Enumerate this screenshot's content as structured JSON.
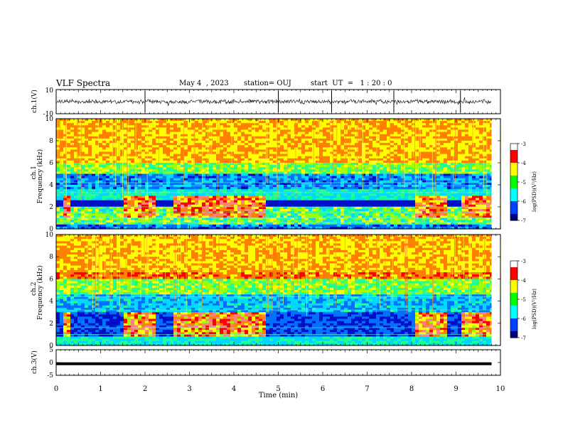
{
  "header": {
    "title": "VLF Spectra",
    "date": "May 4  , 2023",
    "station": "station= OUJ",
    "start": "start  UT  =   1 : 20 : 0"
  },
  "chart_data": [
    {
      "type": "line",
      "panel": "ch1-waveform",
      "ylabel": "ch.1(V)",
      "ylim": [
        -10,
        10
      ],
      "yticks": [
        "10",
        "-10"
      ],
      "xlim": [
        0,
        10
      ],
      "description_level": 0
    },
    {
      "type": "heatmap",
      "panel": "ch1-spectrogram",
      "ylabel": "ch.1\nFrequency (kHz)",
      "ylabel_lines": [
        "ch.1",
        "Frequency  (kHz)"
      ],
      "ylim": [
        0,
        10
      ],
      "yticks": [
        "0",
        "2",
        "4",
        "6",
        "8",
        "10"
      ],
      "xlim": [
        0,
        10
      ],
      "colorbar": {
        "label": "log(PSD)(V²/Hz)",
        "ticks": [
          "-3",
          "-4",
          "-5",
          "-6",
          "-7"
        ],
        "range": [
          -7,
          -3
        ]
      },
      "quiet_intervals_min": [
        [
          1.5,
          2.2
        ],
        [
          2.6,
          4.6
        ],
        [
          7.9,
          8.6
        ],
        [
          8.9,
          9.8
        ]
      ]
    },
    {
      "type": "heatmap",
      "panel": "ch2-spectrogram",
      "ylabel_lines": [
        "ch.2",
        "Frequency  (kHz)"
      ],
      "ylim": [
        0,
        10
      ],
      "yticks": [
        "0",
        "2",
        "4",
        "6",
        "8",
        "10"
      ],
      "xlim": [
        0,
        10
      ],
      "colorbar": {
        "label": "log(PSD)(V²/Hz)",
        "ticks": [
          "-3",
          "-4",
          "-5",
          "-6",
          "-7"
        ],
        "range": [
          -7,
          -3
        ]
      }
    },
    {
      "type": "line",
      "panel": "ch3-waveform",
      "ylabel": "ch.3(V)",
      "ylim": [
        -5,
        5
      ],
      "yticks": [
        "5",
        "0",
        "-5"
      ],
      "series": [
        {
          "values": [
            -0.5,
            -0.5
          ]
        }
      ],
      "x": [
        0,
        9.8
      ]
    }
  ],
  "xaxis": {
    "label": "Time  (min)",
    "ticks": [
      "0",
      "1",
      "2",
      "3",
      "4",
      "5",
      "6",
      "7",
      "8",
      "9",
      "10"
    ]
  },
  "colors": {
    "palette": [
      "#00003a",
      "#0010c8",
      "#0070ff",
      "#00d8ff",
      "#20ff90",
      "#a0ff00",
      "#ffff00",
      "#ff8000",
      "#ff0000",
      "#ff8080",
      "#ffffff"
    ]
  }
}
